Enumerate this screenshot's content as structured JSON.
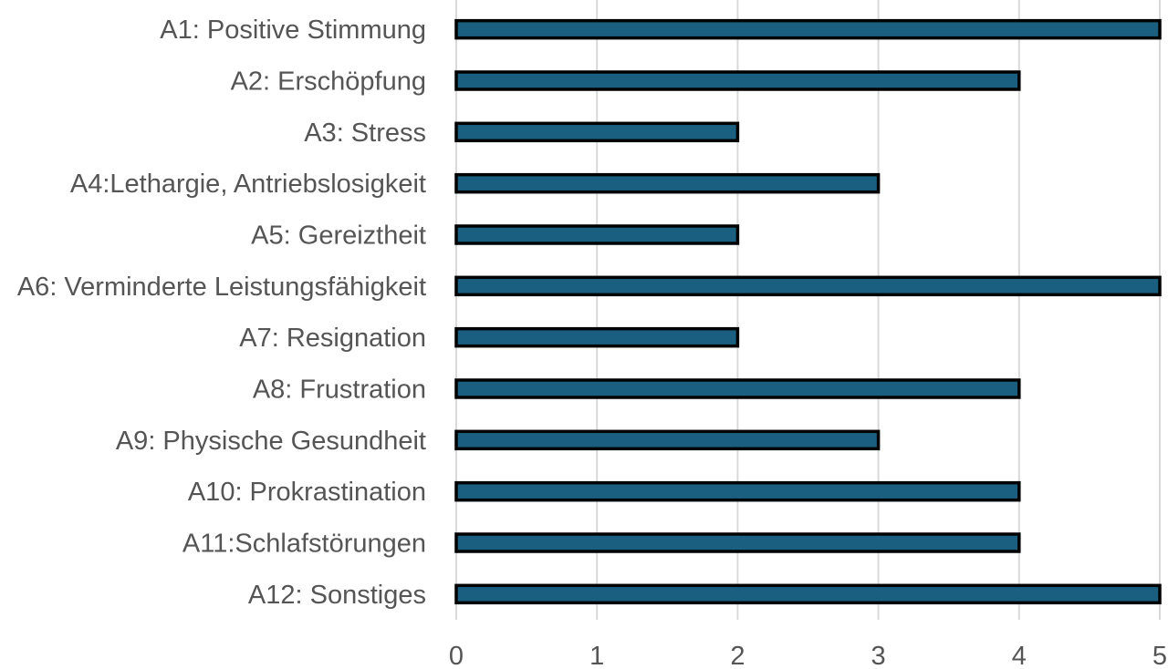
{
  "chart_data": {
    "type": "bar",
    "orientation": "horizontal",
    "title": "",
    "xlabel": "",
    "ylabel": "",
    "categories": [
      "A1: Positive Stimmung",
      "A2: Erschöpfung",
      "A3: Stress",
      "A4:Lethargie, Antriebslosigkeit",
      "A5: Gereiztheit",
      "A6: Verminderte Leistungsfähigkeit",
      "A7: Resignation",
      "A8: Frustration",
      "A9: Physische Gesundheit",
      "A10: Prokrastination",
      "A11:Schlafstörungen",
      "A12: Sonstiges"
    ],
    "values": [
      5,
      4,
      2,
      3,
      2,
      5,
      2,
      4,
      3,
      4,
      4,
      5
    ],
    "xlim": [
      0,
      5
    ],
    "xticks": [
      "0",
      "1",
      "2",
      "3",
      "4",
      "5"
    ],
    "grid": "vertical",
    "legend": "none",
    "bar_color": "#1b5f80",
    "bar_edge_color": "#000000"
  }
}
